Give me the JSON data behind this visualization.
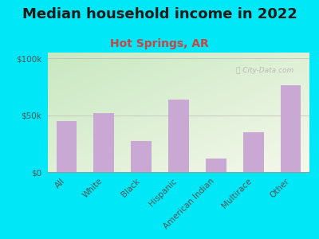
{
  "title": "Median household income in 2022",
  "subtitle": "Hot Springs, AR",
  "categories": [
    "All",
    "White",
    "Black",
    "Hispanic",
    "American Indian",
    "Multirace",
    "Other"
  ],
  "values": [
    45000,
    52000,
    27000,
    64000,
    12000,
    35000,
    76000
  ],
  "bar_color": "#c9a8d4",
  "background_outer": "#00e8f8",
  "title_color": "#1a1a1a",
  "subtitle_color": "#cc4444",
  "axis_label_color": "#555555",
  "ytick_labels": [
    "$0",
    "$50k",
    "$100k"
  ],
  "ytick_values": [
    0,
    50000,
    100000
  ],
  "ylim": [
    0,
    105000
  ],
  "watermark": "ⓘ City-Data.com",
  "title_fontsize": 13,
  "subtitle_fontsize": 10,
  "tick_fontsize": 7.5,
  "grad_top_left": "#c8e8c0",
  "grad_bottom_right": "#f8f8f0"
}
